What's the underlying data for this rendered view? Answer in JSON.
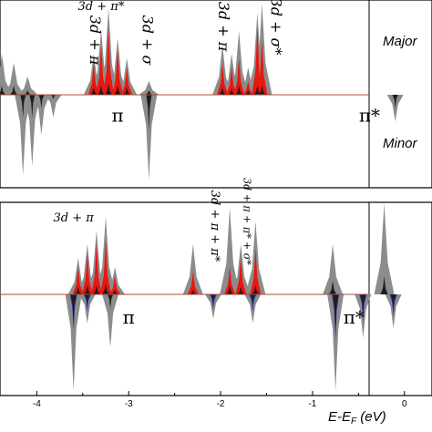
{
  "chart_data": {
    "type": "area",
    "xlabel_parts": {
      "main": "E-E",
      "sub": "F",
      "unit": " (eV)"
    },
    "xlim": [
      -4.4,
      0.3
    ],
    "x_ticks": [
      -4,
      -3,
      -2,
      -1,
      0
    ],
    "x_tick_labels": [
      "-4",
      "-3",
      "-2",
      "-1",
      "0"
    ],
    "panels": [
      {
        "id": "top",
        "spin_labels": {
          "up": "Major",
          "down": "Minor"
        },
        "colors": {
          "total": "#8c8c8c",
          "metal_d": "#e8170f",
          "ligand": "#1c1c1c",
          "baseline": "#b04a3a"
        },
        "peaks_up": [
          {
            "x": -4.38,
            "gray": 0.45,
            "red": 0.0,
            "black": 0.1
          },
          {
            "x": -4.25,
            "gray": 0.35,
            "red": 0.0,
            "black": 0.1
          },
          {
            "x": -4.1,
            "gray": 0.2,
            "red": 0.0,
            "black": 0.05
          },
          {
            "x": -3.38,
            "gray": 0.45,
            "red": 0.35,
            "black": 0.08
          },
          {
            "x": -3.3,
            "gray": 0.72,
            "red": 0.55,
            "black": 0.1
          },
          {
            "x": -3.22,
            "gray": 0.95,
            "red": 0.75,
            "black": 0.12
          },
          {
            "x": -3.12,
            "gray": 0.62,
            "red": 0.5,
            "black": 0.1
          },
          {
            "x": -3.02,
            "gray": 0.4,
            "red": 0.3,
            "black": 0.08
          },
          {
            "x": -2.78,
            "gray": 0.15,
            "red": 0.0,
            "black": 0.05
          },
          {
            "x": -1.98,
            "gray": 0.55,
            "red": 0.35,
            "black": 0.08
          },
          {
            "x": -1.88,
            "gray": 0.45,
            "red": 0.3,
            "black": 0.06
          },
          {
            "x": -1.8,
            "gray": 0.7,
            "red": 0.4,
            "black": 0.1
          },
          {
            "x": -1.7,
            "gray": 0.3,
            "red": 0.15,
            "black": 0.05
          },
          {
            "x": -1.6,
            "gray": 0.9,
            "red": 0.75,
            "black": 0.1
          },
          {
            "x": -1.55,
            "gray": 1.0,
            "red": 0.6,
            "black": 0.1
          }
        ],
        "peaks_down": [
          {
            "x": -4.15,
            "gray": 0.9,
            "red": 0.0,
            "black": 0.25
          },
          {
            "x": -4.05,
            "gray": 0.8,
            "red": 0.0,
            "black": 0.25
          },
          {
            "x": -3.95,
            "gray": 0.45,
            "red": 0.0,
            "black": 0.15
          },
          {
            "x": -3.82,
            "gray": 0.25,
            "red": 0.0,
            "black": 0.05
          },
          {
            "x": -2.78,
            "gray": 0.95,
            "red": 0.0,
            "black": 0.4
          },
          {
            "x": -0.1,
            "gray": 0.3,
            "red": 0.0,
            "black": 0.15
          }
        ],
        "annotations": [
          {
            "text": "3d + π*",
            "x": -3.3,
            "level": 0.93,
            "style": "italic",
            "size": 13
          },
          {
            "text": "3d + π",
            "x": -3.42,
            "level": 0.6,
            "style": "italic",
            "size": 16,
            "rotate": 90
          },
          {
            "text": "3d + σ",
            "x": -2.85,
            "level": 0.6,
            "style": "italic",
            "size": 16,
            "rotate": 90
          },
          {
            "text": "3d + π",
            "x": -2.02,
            "level": 0.75,
            "style": "italic",
            "size": 16,
            "rotate": 90
          },
          {
            "text": "3d + σ*",
            "x": -1.45,
            "level": 0.75,
            "style": "italic",
            "size": 16,
            "rotate": 90
          },
          {
            "text": "π",
            "x": -3.12,
            "level": -0.3,
            "style": "normal",
            "size": 20
          },
          {
            "text": "π*",
            "x": -0.38,
            "level": -0.3,
            "style": "normal",
            "size": 20
          }
        ]
      },
      {
        "id": "bottom",
        "colors": {
          "total": "#8c8c8c",
          "metal_d": "#e8170f",
          "ligand": "#1c1c1c",
          "minor_d": "#2233aa",
          "baseline": "#b04a3a"
        },
        "peaks_up": [
          {
            "x": -3.55,
            "gray": 0.4,
            "red": 0.3,
            "black": 0.08
          },
          {
            "x": -3.45,
            "gray": 0.55,
            "red": 0.45,
            "black": 0.1
          },
          {
            "x": -3.35,
            "gray": 0.7,
            "red": 0.55,
            "black": 0.1
          },
          {
            "x": -3.25,
            "gray": 0.85,
            "red": 0.6,
            "black": 0.12
          },
          {
            "x": -3.15,
            "gray": 0.3,
            "red": 0.2,
            "black": 0.05
          },
          {
            "x": -2.3,
            "gray": 0.55,
            "red": 0.25,
            "black": 0.05
          },
          {
            "x": -1.9,
            "gray": 0.95,
            "red": 0.3,
            "black": 0.1
          },
          {
            "x": -1.78,
            "gray": 0.55,
            "red": 0.4,
            "black": 0.08
          },
          {
            "x": -1.62,
            "gray": 0.8,
            "red": 0.5,
            "black": 0.1
          },
          {
            "x": -0.78,
            "gray": 0.55,
            "red": 0.0,
            "black": 0.15
          },
          {
            "x": -0.22,
            "gray": 1.0,
            "red": 0.0,
            "black": 0.2
          }
        ],
        "peaks_down": [
          {
            "x": -3.6,
            "gray": 1.0,
            "red": 0.0,
            "black": 0.3,
            "blue": 0.3
          },
          {
            "x": -3.45,
            "gray": 0.3,
            "red": 0.0,
            "black": 0.1,
            "blue": 0.1
          },
          {
            "x": -3.2,
            "gray": 0.55,
            "red": 0.0,
            "black": 0.15,
            "blue": 0.0
          },
          {
            "x": -2.08,
            "gray": 0.25,
            "red": 0.0,
            "black": 0.08,
            "blue": 0.08
          },
          {
            "x": -1.65,
            "gray": 0.3,
            "red": 0.0,
            "black": 0.1,
            "blue": 0.1
          },
          {
            "x": -0.75,
            "gray": 1.0,
            "red": 0.0,
            "black": 0.4,
            "blue": 0.4
          },
          {
            "x": -0.45,
            "gray": 0.45,
            "red": 0.0,
            "black": 0.2,
            "blue": 0.2
          },
          {
            "x": -0.12,
            "gray": 0.35,
            "red": 0.0,
            "black": 0.15,
            "blue": 0.15
          }
        ],
        "annotations": [
          {
            "text": "3d + π",
            "x": -3.6,
            "level": 0.8,
            "style": "italic",
            "size": 13
          },
          {
            "text": "3d + π + π*",
            "x": -2.1,
            "level": 0.75,
            "style": "italic",
            "size": 13,
            "rotate": 90
          },
          {
            "text": "3d + π + π* + σ*",
            "x": -1.75,
            "level": 0.8,
            "style": "italic",
            "size": 11,
            "rotate": 90
          },
          {
            "text": "π",
            "x": -3.0,
            "level": -0.3,
            "style": "normal",
            "size": 20
          },
          {
            "text": "π*",
            "x": -0.55,
            "level": -0.3,
            "style": "normal",
            "size": 20
          }
        ]
      }
    ]
  }
}
